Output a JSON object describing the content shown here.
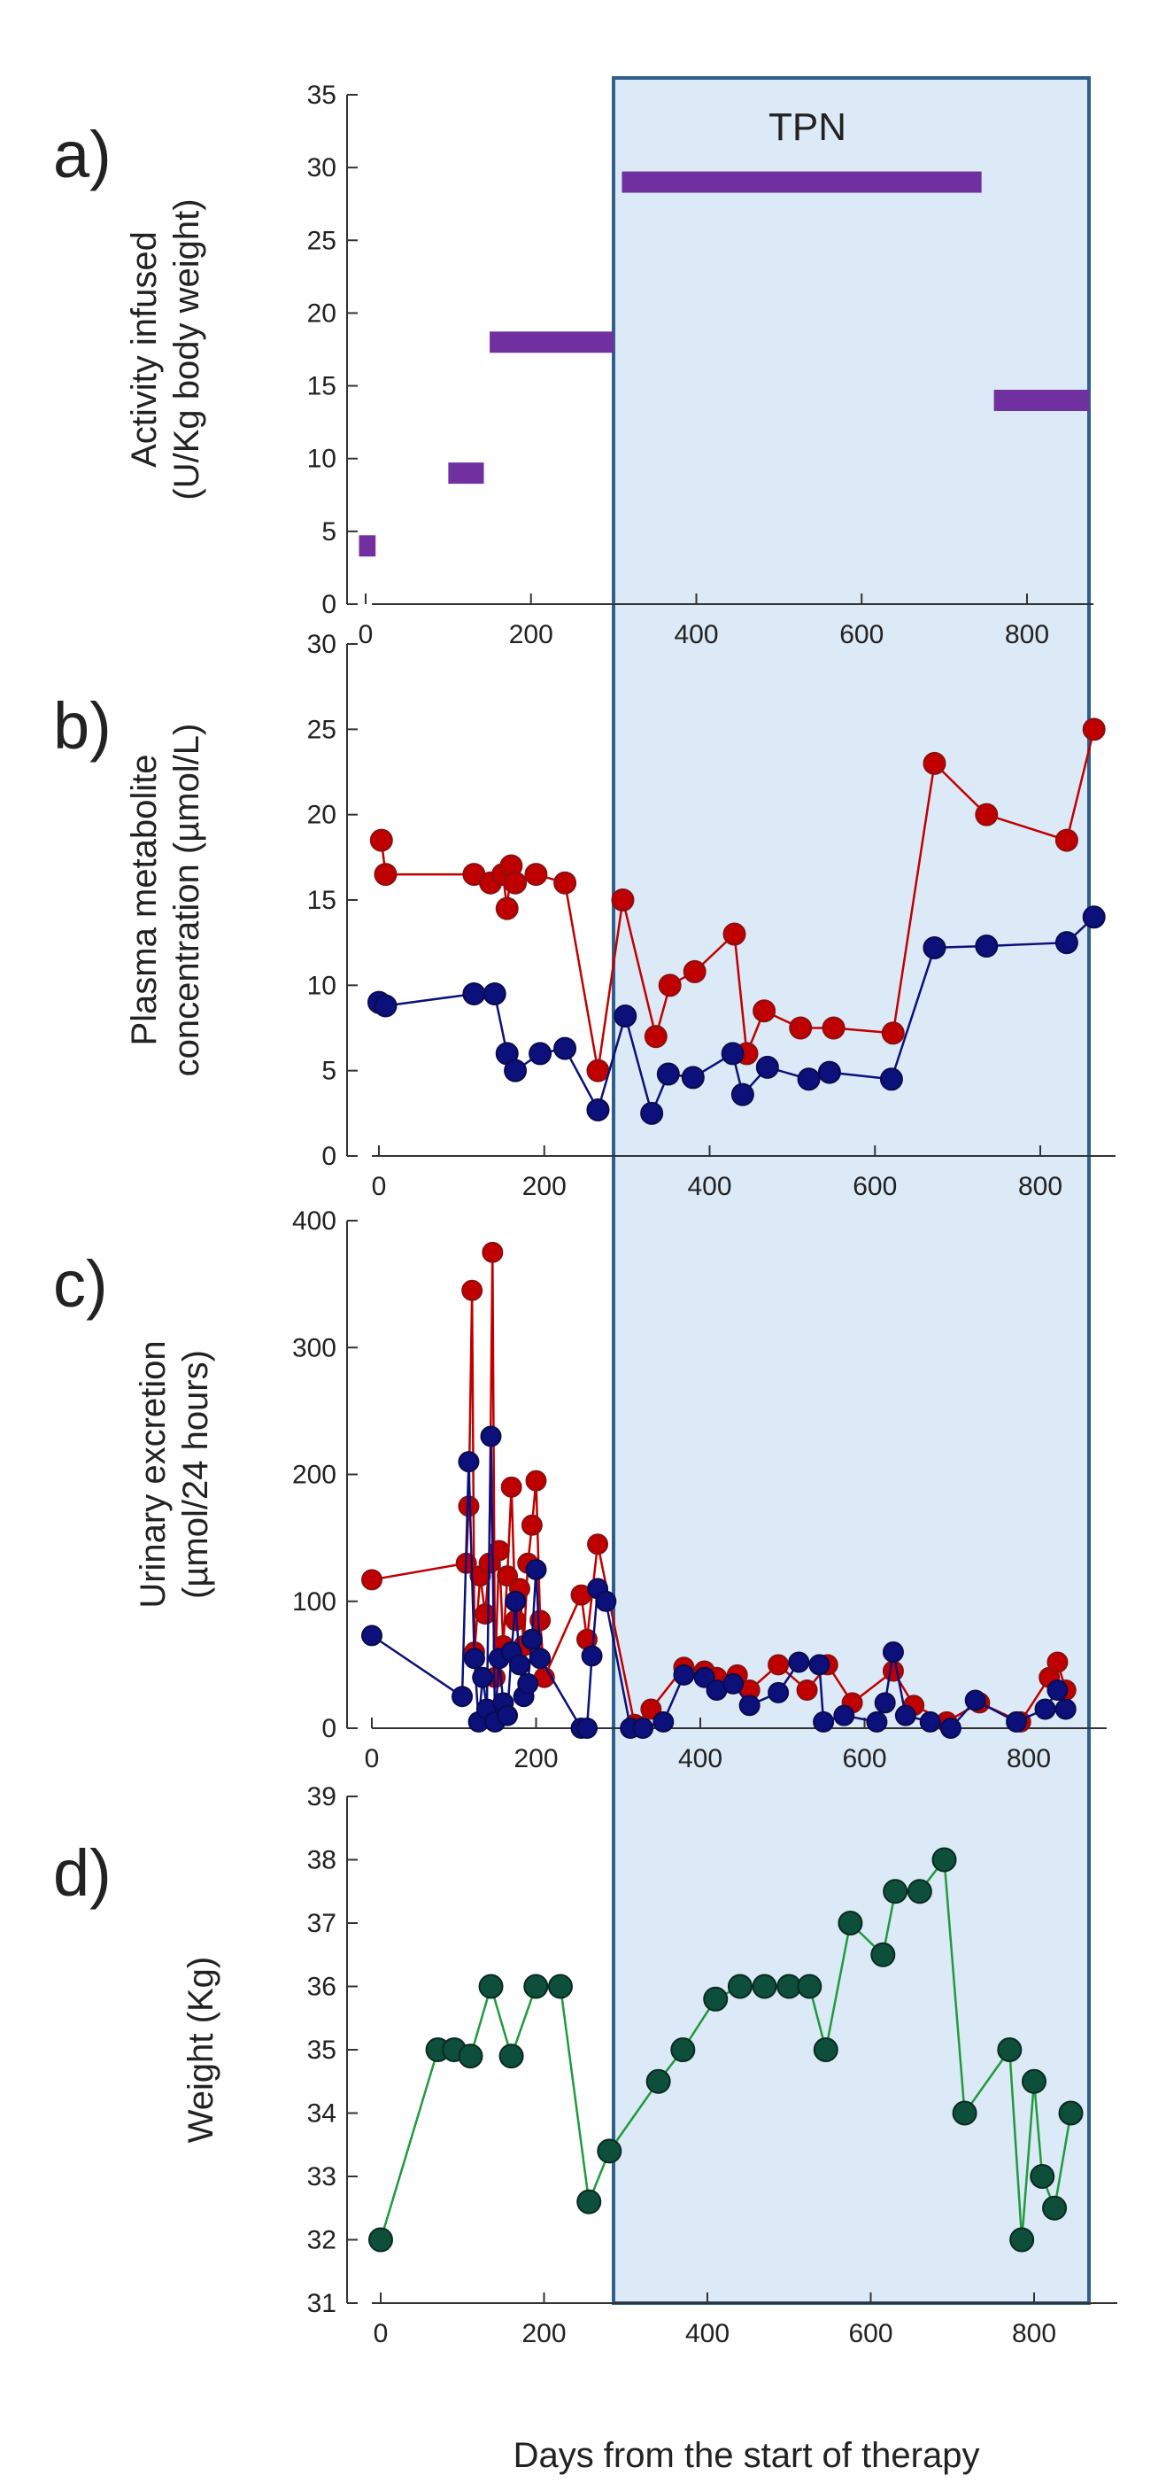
{
  "figure": {
    "xlabel": "Days from the start of therapy",
    "tpn_label": "TPN",
    "colors": {
      "purple": "#7030a0",
      "red": "#c00000",
      "blue": "#0c107a",
      "green": "#1f9a3e",
      "green_marker": "#0e4f3c",
      "tpn_fill": "#dce9f6",
      "tpn_stroke": "#2f5f8a"
    }
  },
  "chart_data": [
    {
      "id": "a",
      "panel_label": "a)",
      "type": "bar",
      "ylabel_lines": [
        "Activity infused",
        "(U/Kg body weight)"
      ],
      "xlim": [
        0,
        880
      ],
      "ylim": [
        0,
        35
      ],
      "xticks": [
        "0",
        "200",
        "400",
        "600",
        "800"
      ],
      "xtick_values": [
        0,
        200,
        400,
        600,
        800
      ],
      "yticks": [
        "0",
        "5",
        "10",
        "15",
        "20",
        "25",
        "30",
        "35"
      ],
      "ytick_values": [
        0,
        5,
        10,
        15,
        20,
        25,
        30,
        35
      ],
      "segments": [
        {
          "x0": -8,
          "x1": 12,
          "y": 4
        },
        {
          "x0": 100,
          "x1": 143,
          "y": 9
        },
        {
          "x0": 150,
          "x1": 300,
          "y": 18
        },
        {
          "x0": 310,
          "x1": 745,
          "y": 29
        },
        {
          "x0": 760,
          "x1": 875,
          "y": 14
        }
      ]
    },
    {
      "id": "b",
      "panel_label": "b)",
      "type": "line",
      "ylabel_lines": [
        "Plasma metabolite",
        "concentration (µmol/L)"
      ],
      "xlim": [
        -20,
        875
      ],
      "ylim": [
        0,
        30
      ],
      "xticks": [
        "0",
        "200",
        "400",
        "600",
        "800"
      ],
      "xtick_values": [
        0,
        200,
        400,
        600,
        800
      ],
      "yticks": [
        "0",
        "5",
        "10",
        "15",
        "20",
        "25",
        "30"
      ],
      "ytick_values": [
        0,
        5,
        10,
        15,
        20,
        25,
        30
      ],
      "series": [
        {
          "name": "red",
          "points": [
            [
              3,
              18.5
            ],
            [
              8,
              16.5
            ],
            [
              115,
              16.5
            ],
            [
              135,
              16
            ],
            [
              150,
              16.5
            ],
            [
              155,
              14.5
            ],
            [
              160,
              17
            ],
            [
              165,
              16
            ],
            [
              190,
              16.5
            ],
            [
              225,
              16
            ],
            [
              265,
              5
            ],
            [
              295,
              15
            ],
            [
              335,
              7
            ],
            [
              352,
              10
            ],
            [
              382,
              10.8
            ],
            [
              430,
              13
            ],
            [
              445,
              6
            ],
            [
              466,
              8.5
            ],
            [
              510,
              7.5
            ],
            [
              550,
              7.5
            ],
            [
              622,
              7.2
            ],
            [
              672,
              23
            ],
            [
              735,
              20
            ],
            [
              832,
              18.5
            ],
            [
              865,
              25
            ]
          ]
        },
        {
          "name": "blue",
          "points": [
            [
              0,
              9
            ],
            [
              8,
              8.8
            ],
            [
              115,
              9.5
            ],
            [
              140,
              9.5
            ],
            [
              155,
              6
            ],
            [
              165,
              5
            ],
            [
              195,
              6
            ],
            [
              225,
              6.3
            ],
            [
              265,
              2.7
            ],
            [
              298,
              8.2
            ],
            [
              330,
              2.5
            ],
            [
              350,
              4.8
            ],
            [
              380,
              4.6
            ],
            [
              428,
              6
            ],
            [
              440,
              3.6
            ],
            [
              470,
              5.2
            ],
            [
              520,
              4.5
            ],
            [
              545,
              4.9
            ],
            [
              620,
              4.5
            ],
            [
              672,
              12.2
            ],
            [
              735,
              12.3
            ],
            [
              832,
              12.5
            ],
            [
              865,
              14
            ]
          ]
        }
      ]
    },
    {
      "id": "c",
      "panel_label": "c)",
      "type": "line",
      "ylabel_lines": [
        "Urinary excretion",
        "(µmol/24 hours)"
      ],
      "xlim": [
        -10,
        880
      ],
      "ylim": [
        0,
        400
      ],
      "xticks": [
        "0",
        "200",
        "400",
        "600",
        "800"
      ],
      "xtick_values": [
        0,
        200,
        400,
        600,
        800
      ],
      "yticks": [
        "0",
        "100",
        "200",
        "300",
        "400"
      ],
      "ytick_values": [
        0,
        100,
        200,
        300,
        400
      ],
      "series": [
        {
          "name": "red",
          "points": [
            [
              0,
              117
            ],
            [
              115,
              130
            ],
            [
              118,
              175
            ],
            [
              122,
              345
            ],
            [
              125,
              60
            ],
            [
              132,
              120
            ],
            [
              138,
              90
            ],
            [
              143,
              130
            ],
            [
              147,
              375
            ],
            [
              150,
              40
            ],
            [
              155,
              140
            ],
            [
              160,
              65
            ],
            [
              165,
              120
            ],
            [
              170,
              190
            ],
            [
              175,
              85
            ],
            [
              180,
              110
            ],
            [
              185,
              65
            ],
            [
              190,
              130
            ],
            [
              195,
              160
            ],
            [
              200,
              195
            ],
            [
              205,
              85
            ],
            [
              210,
              40
            ],
            [
              255,
              105
            ],
            [
              262,
              70
            ],
            [
              275,
              145
            ],
            [
              320,
              3
            ],
            [
              340,
              15
            ],
            [
              380,
              48
            ],
            [
              405,
              45
            ],
            [
              420,
              40
            ],
            [
              445,
              42
            ],
            [
              460,
              30
            ],
            [
              495,
              50
            ],
            [
              530,
              30
            ],
            [
              555,
              50
            ],
            [
              585,
              20
            ],
            [
              635,
              45
            ],
            [
              660,
              18
            ],
            [
              700,
              5
            ],
            [
              740,
              20
            ],
            [
              790,
              5
            ],
            [
              825,
              40
            ],
            [
              835,
              52
            ],
            [
              845,
              30
            ]
          ]
        },
        {
          "name": "blue",
          "points": [
            [
              0,
              73
            ],
            [
              110,
              25
            ],
            [
              118,
              210
            ],
            [
              125,
              55
            ],
            [
              130,
              5
            ],
            [
              135,
              40
            ],
            [
              140,
              15
            ],
            [
              145,
              230
            ],
            [
              150,
              5
            ],
            [
              155,
              55
            ],
            [
              160,
              20
            ],
            [
              165,
              10
            ],
            [
              170,
              60
            ],
            [
              175,
              100
            ],
            [
              180,
              50
            ],
            [
              185,
              25
            ],
            [
              190,
              35
            ],
            [
              195,
              70
            ],
            [
              200,
              125
            ],
            [
              205,
              55
            ],
            [
              255,
              0
            ],
            [
              262,
              0
            ],
            [
              268,
              57
            ],
            [
              275,
              110
            ],
            [
              285,
              100
            ],
            [
              315,
              0
            ],
            [
              330,
              0
            ],
            [
              355,
              5
            ],
            [
              380,
              42
            ],
            [
              405,
              40
            ],
            [
              420,
              30
            ],
            [
              440,
              35
            ],
            [
              460,
              18
            ],
            [
              495,
              28
            ],
            [
              520,
              52
            ],
            [
              545,
              50
            ],
            [
              550,
              5
            ],
            [
              575,
              10
            ],
            [
              615,
              5
            ],
            [
              625,
              20
            ],
            [
              635,
              60
            ],
            [
              650,
              10
            ],
            [
              680,
              5
            ],
            [
              705,
              0
            ],
            [
              735,
              22
            ],
            [
              785,
              5
            ],
            [
              820,
              15
            ],
            [
              835,
              30
            ],
            [
              845,
              15
            ]
          ]
        }
      ]
    },
    {
      "id": "d",
      "panel_label": "d)",
      "type": "line",
      "ylabel_lines": [
        "Weight (Kg)"
      ],
      "xlim": [
        -10,
        885
      ],
      "ylim": [
        31,
        39
      ],
      "xticks": [
        "0",
        "200",
        "400",
        "600",
        "800"
      ],
      "xtick_values": [
        0,
        200,
        400,
        600,
        800
      ],
      "yticks": [
        "31",
        "32",
        "33",
        "34",
        "35",
        "36",
        "37",
        "38",
        "39"
      ],
      "ytick_values": [
        31,
        32,
        33,
        34,
        35,
        36,
        37,
        38,
        39
      ],
      "series": [
        {
          "name": "green",
          "points": [
            [
              0,
              32
            ],
            [
              70,
              35
            ],
            [
              90,
              35
            ],
            [
              110,
              34.9
            ],
            [
              135,
              36
            ],
            [
              160,
              34.9
            ],
            [
              190,
              36
            ],
            [
              220,
              36
            ],
            [
              255,
              32.6
            ],
            [
              280,
              33.4
            ],
            [
              340,
              34.5
            ],
            [
              370,
              35
            ],
            [
              410,
              35.8
            ],
            [
              440,
              36
            ],
            [
              470,
              36
            ],
            [
              500,
              36
            ],
            [
              525,
              36
            ],
            [
              545,
              35
            ],
            [
              575,
              37
            ],
            [
              615,
              36.5
            ],
            [
              630,
              37.5
            ],
            [
              660,
              37.5
            ],
            [
              690,
              38
            ],
            [
              715,
              34
            ],
            [
              770,
              35
            ],
            [
              785,
              32
            ],
            [
              800,
              34.5
            ],
            [
              810,
              33
            ],
            [
              825,
              32.5
            ],
            [
              845,
              34
            ]
          ]
        }
      ]
    }
  ]
}
